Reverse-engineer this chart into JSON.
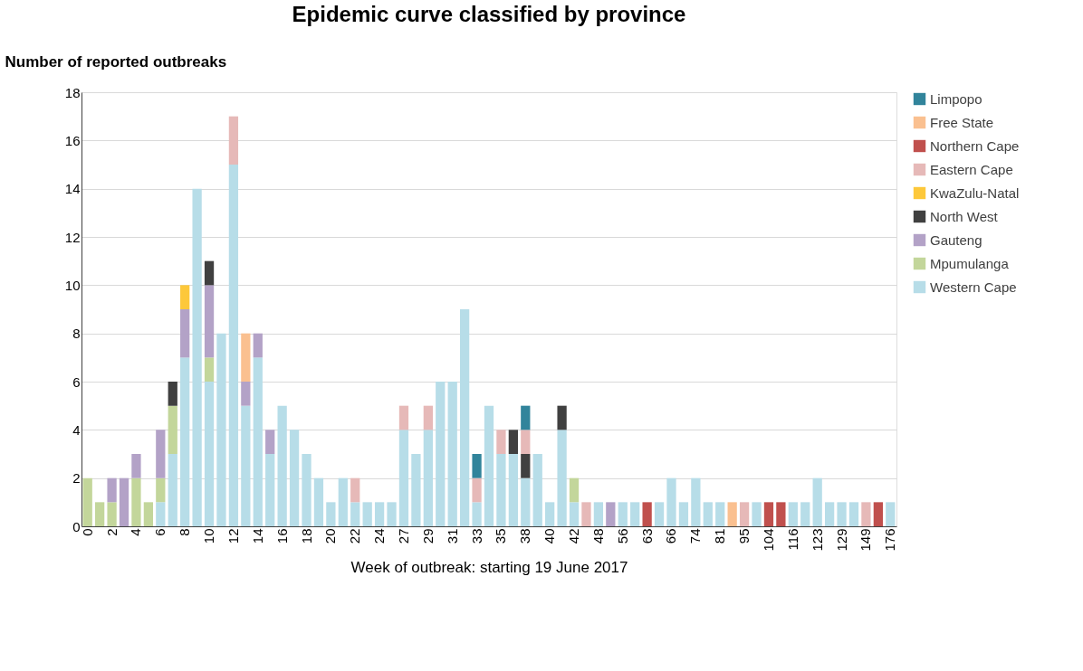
{
  "chart_data": {
    "type": "bar",
    "stacked": true,
    "title": "Epidemic curve classified by province",
    "xlabel": "Week of outbreak: starting 19 June 2017",
    "ylabel": "Number of reported outbreaks",
    "categories": [
      "0",
      null,
      "2",
      null,
      "4",
      null,
      "6",
      null,
      "8",
      null,
      "10",
      null,
      "12",
      null,
      "14",
      null,
      "16",
      null,
      "18",
      null,
      "20",
      null,
      "22",
      null,
      "24",
      null,
      "27",
      null,
      "29",
      null,
      "31",
      null,
      "33",
      null,
      "35",
      null,
      "38",
      null,
      "40",
      null,
      "42",
      null,
      "48",
      null,
      "56",
      null,
      "63",
      null,
      "66",
      null,
      "74",
      null,
      "81",
      null,
      "95",
      null,
      "104",
      null,
      "116",
      null,
      "123",
      null,
      "129",
      null,
      "149",
      null,
      "176"
    ],
    "ylim": [
      0,
      18
    ],
    "yticks": [
      0,
      2,
      4,
      6,
      8,
      10,
      12,
      14,
      16,
      18
    ],
    "grid": "y",
    "legend": "right",
    "series": [
      {
        "name": "Western Cape",
        "color": "#b7dde8",
        "values": [
          null,
          null,
          null,
          null,
          null,
          null,
          1,
          3,
          7,
          14,
          6,
          8,
          15,
          5,
          7,
          3,
          5,
          4,
          3,
          2,
          1,
          2,
          1,
          1,
          1,
          1,
          4,
          3,
          4,
          6,
          6,
          9,
          1,
          5,
          3,
          3,
          2,
          3,
          1,
          4,
          1,
          null,
          1,
          null,
          1,
          1,
          null,
          1,
          2,
          1,
          2,
          1,
          1,
          null,
          null,
          1,
          null,
          null,
          1,
          1,
          2,
          1,
          1,
          1,
          null,
          null,
          1
        ]
      },
      {
        "name": "Mpumulanga",
        "color": "#c3d69b",
        "values": [
          2,
          1,
          1,
          null,
          2,
          1,
          1,
          2,
          null,
          null,
          1,
          null,
          null,
          null,
          null,
          null,
          null,
          null,
          null,
          null,
          null,
          null,
          null,
          null,
          null,
          null,
          null,
          null,
          null,
          null,
          null,
          null,
          null,
          null,
          null,
          null,
          null,
          null,
          null,
          null,
          1,
          null,
          null,
          null,
          null,
          null,
          null,
          null,
          null,
          null,
          null,
          null,
          null,
          null,
          null,
          null,
          null,
          null,
          null,
          null,
          null,
          null,
          null,
          null,
          null,
          null,
          null
        ]
      },
      {
        "name": "Gauteng",
        "color": "#b3a2c7",
        "values": [
          null,
          null,
          1,
          2,
          1,
          null,
          2,
          null,
          2,
          null,
          3,
          null,
          null,
          1,
          1,
          1,
          null,
          null,
          null,
          null,
          null,
          null,
          null,
          null,
          null,
          null,
          null,
          null,
          null,
          null,
          null,
          null,
          null,
          null,
          null,
          null,
          null,
          null,
          null,
          null,
          null,
          null,
          null,
          1,
          null,
          null,
          null,
          null,
          null,
          null,
          null,
          null,
          null,
          null,
          null,
          null,
          null,
          null,
          null,
          null,
          null,
          null,
          null,
          null,
          null,
          null,
          null
        ]
      },
      {
        "name": "North West",
        "color": "#404040",
        "values": [
          null,
          null,
          null,
          null,
          null,
          null,
          null,
          1,
          null,
          null,
          1,
          null,
          null,
          null,
          null,
          null,
          null,
          null,
          null,
          null,
          null,
          null,
          null,
          null,
          null,
          null,
          null,
          null,
          null,
          null,
          null,
          null,
          null,
          null,
          null,
          1,
          1,
          null,
          null,
          1,
          null,
          null,
          null,
          null,
          null,
          null,
          null,
          null,
          null,
          null,
          null,
          null,
          null,
          null,
          null,
          null,
          null,
          null,
          null,
          null,
          null,
          null,
          null,
          null,
          null,
          null,
          null
        ]
      },
      {
        "name": "KwaZulu-Natal",
        "color": "#fdc83a",
        "values": [
          null,
          null,
          null,
          null,
          null,
          null,
          null,
          null,
          1,
          null,
          null,
          null,
          null,
          null,
          null,
          null,
          null,
          null,
          null,
          null,
          null,
          null,
          null,
          null,
          null,
          null,
          null,
          null,
          null,
          null,
          null,
          null,
          null,
          null,
          null,
          null,
          null,
          null,
          null,
          null,
          null,
          null,
          null,
          null,
          null,
          null,
          null,
          null,
          null,
          null,
          null,
          null,
          null,
          null,
          null,
          null,
          null,
          null,
          null,
          null,
          null,
          null,
          null,
          null,
          null,
          null,
          null
        ]
      },
      {
        "name": "Eastern Cape",
        "color": "#e6b9b8",
        "values": [
          null,
          null,
          null,
          null,
          null,
          null,
          null,
          null,
          null,
          null,
          null,
          null,
          2,
          null,
          null,
          null,
          null,
          null,
          null,
          null,
          null,
          null,
          1,
          null,
          null,
          null,
          1,
          null,
          1,
          null,
          null,
          null,
          1,
          null,
          1,
          null,
          1,
          null,
          null,
          null,
          null,
          1,
          null,
          null,
          null,
          null,
          null,
          null,
          null,
          null,
          null,
          null,
          null,
          null,
          1,
          null,
          null,
          null,
          null,
          null,
          null,
          null,
          null,
          null,
          1,
          null,
          null
        ]
      },
      {
        "name": "Northern Cape",
        "color": "#c0504d",
        "values": [
          null,
          null,
          null,
          null,
          null,
          null,
          null,
          null,
          null,
          null,
          null,
          null,
          null,
          null,
          null,
          null,
          null,
          null,
          null,
          null,
          null,
          null,
          null,
          null,
          null,
          null,
          null,
          null,
          null,
          null,
          null,
          null,
          null,
          null,
          null,
          null,
          null,
          null,
          null,
          null,
          null,
          null,
          null,
          null,
          null,
          null,
          1,
          null,
          null,
          null,
          null,
          null,
          null,
          null,
          null,
          null,
          1,
          1,
          null,
          null,
          null,
          null,
          null,
          null,
          null,
          1,
          null
        ]
      },
      {
        "name": "Free State",
        "color": "#fac090",
        "values": [
          null,
          null,
          null,
          null,
          null,
          null,
          null,
          null,
          null,
          null,
          null,
          null,
          null,
          2,
          null,
          null,
          null,
          null,
          null,
          null,
          null,
          null,
          null,
          null,
          null,
          null,
          null,
          null,
          null,
          null,
          null,
          null,
          null,
          null,
          null,
          null,
          null,
          null,
          null,
          null,
          null,
          null,
          null,
          null,
          null,
          null,
          null,
          null,
          null,
          null,
          null,
          null,
          null,
          1,
          null,
          null,
          null,
          null,
          null,
          null,
          null,
          null,
          null,
          null,
          null,
          null,
          null
        ]
      },
      {
        "name": "Limpopo",
        "color": "#31849b",
        "values": [
          null,
          null,
          null,
          null,
          null,
          null,
          null,
          null,
          null,
          null,
          null,
          null,
          null,
          null,
          null,
          null,
          null,
          null,
          null,
          null,
          null,
          null,
          null,
          null,
          null,
          null,
          null,
          null,
          null,
          null,
          null,
          null,
          1,
          null,
          null,
          null,
          1,
          null,
          null,
          null,
          null,
          null,
          null,
          null,
          null,
          null,
          null,
          null,
          null,
          null,
          null,
          null,
          null,
          null,
          null,
          null,
          null,
          null,
          null,
          null,
          null,
          null,
          null,
          null,
          null,
          null,
          null
        ]
      }
    ]
  }
}
